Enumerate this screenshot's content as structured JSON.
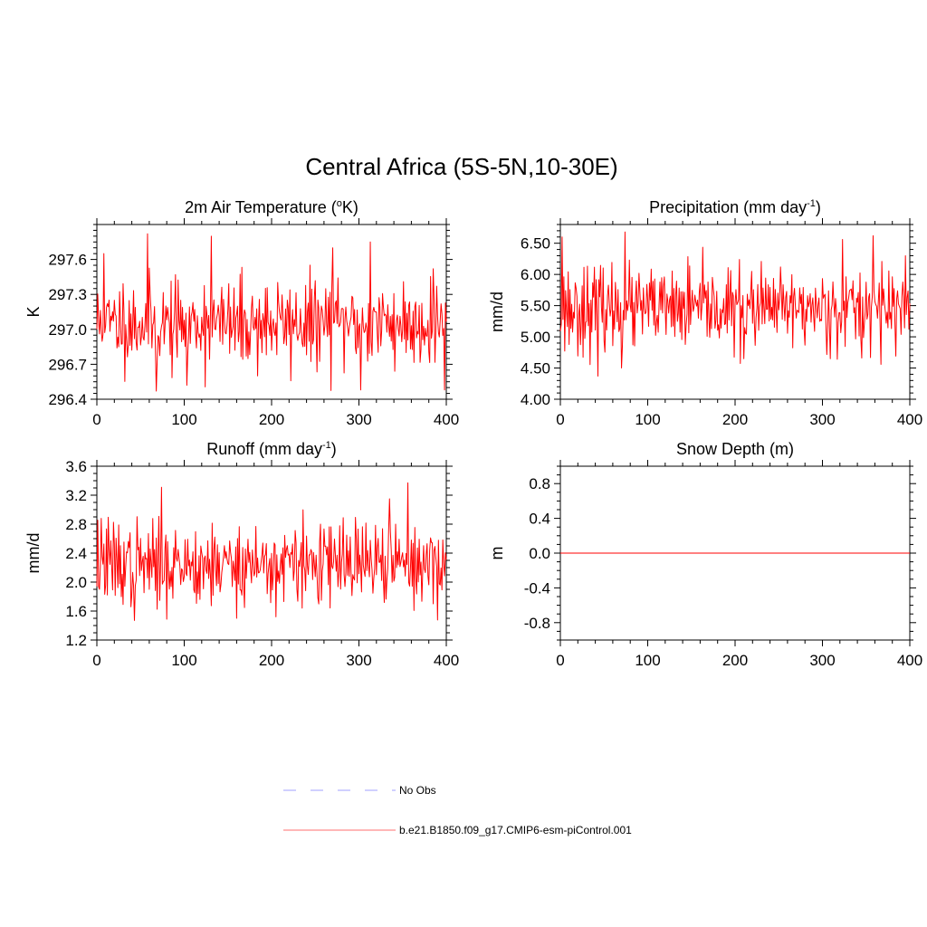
{
  "figure": {
    "title": "Central Africa (5S-5N,10-30E)"
  },
  "legend": {
    "items": [
      {
        "label": "No Obs",
        "color": "#b4b4ff",
        "style": "dashed"
      },
      {
        "label": "b.e21.B1850.f09_g17.CMIP6-esm-piControl.001",
        "color": "#ff8c8c",
        "style": "solid"
      }
    ]
  },
  "colors": {
    "series": "#ff0000",
    "axis": "#000000"
  },
  "chart_data": [
    {
      "type": "line",
      "title_main": "2m Air Temperature (",
      "title_sup": "o",
      "title_end": "K)",
      "ylabel": "K",
      "xlabel": "",
      "xlim": [
        0,
        400
      ],
      "ylim": [
        296.4,
        297.9
      ],
      "xticks": [
        0,
        100,
        200,
        300,
        400
      ],
      "xtick_labels": [
        "0",
        "100",
        "200",
        "300",
        "400"
      ],
      "yticks": [
        296.4,
        296.7,
        297.0,
        297.3,
        297.6
      ],
      "ytick_labels": [
        "296.4",
        "296.7",
        "297.0",
        "297.3",
        "297.6"
      ],
      "yminor_step": 0.05,
      "xminor_step": 20,
      "series": [
        {
          "gen": {
            "mean": 297.05,
            "sd": 0.22,
            "seed": 11,
            "min": 296.47,
            "max": 297.82,
            "n": 400,
            "spikes": [
              [
                8,
                297.65
              ],
              [
                58,
                297.82
              ],
              [
                131,
                297.8
              ],
              [
                68,
                296.47
              ],
              [
                103,
                296.52
              ],
              [
                302,
                296.48
              ],
              [
                398,
                296.48
              ],
              [
                313,
                297.75
              ],
              [
                270,
                297.7
              ],
              [
                385,
                297.52
              ]
            ]
          }
        }
      ]
    },
    {
      "type": "line",
      "title_main": "Precipitation (mm day",
      "title_sup": "-1",
      "title_end": ")",
      "ylabel": "mm/d",
      "xlabel": "",
      "xlim": [
        0,
        400
      ],
      "ylim": [
        4.0,
        6.8
      ],
      "xticks": [
        0,
        100,
        200,
        300,
        400
      ],
      "xtick_labels": [
        "0",
        "100",
        "200",
        "300",
        "400"
      ],
      "yticks": [
        4.0,
        4.5,
        5.0,
        5.5,
        6.0,
        6.5
      ],
      "ytick_labels": [
        "4.00",
        "4.50",
        "5.00",
        "5.50",
        "6.00",
        "6.50"
      ],
      "yminor_step": 0.1,
      "xminor_step": 20,
      "series": [
        {
          "gen": {
            "mean": 5.45,
            "sd": 0.38,
            "seed": 23,
            "min": 4.37,
            "max": 6.68,
            "n": 400,
            "spikes": [
              [
                2,
                6.6
              ],
              [
                43,
                4.37
              ],
              [
                74,
                6.68
              ],
              [
                70,
                4.5
              ],
              [
                358,
                6.62
              ],
              [
                323,
                6.56
              ],
              [
                210,
                4.65
              ],
              [
                345,
                4.66
              ],
              [
                395,
                6.3
              ]
            ]
          }
        }
      ]
    },
    {
      "type": "line",
      "title_main": "Runoff (mm day",
      "title_sup": "-1",
      "title_end": ")",
      "ylabel": "mm/d",
      "xlabel": "",
      "xlim": [
        0,
        400
      ],
      "ylim": [
        1.2,
        3.6
      ],
      "xticks": [
        0,
        100,
        200,
        300,
        400
      ],
      "xtick_labels": [
        "0",
        "100",
        "200",
        "300",
        "400"
      ],
      "yticks": [
        1.2,
        1.6,
        2.0,
        2.4,
        2.8,
        3.2,
        3.6
      ],
      "ytick_labels": [
        "1.2",
        "1.6",
        "2.0",
        "2.4",
        "2.8",
        "3.2",
        "3.6"
      ],
      "yminor_step": 0.1,
      "xminor_step": 20,
      "series": [
        {
          "gen": {
            "mean": 2.25,
            "sd": 0.33,
            "seed": 37,
            "min": 1.47,
            "max": 3.37,
            "n": 400,
            "spikes": [
              [
                74,
                3.31
              ],
              [
                356,
                3.37
              ],
              [
                43,
                1.47
              ],
              [
                160,
                1.5
              ],
              [
                205,
                1.52
              ],
              [
                335,
                3.15
              ],
              [
                5,
                2.88
              ],
              [
                385,
                1.7
              ]
            ]
          }
        }
      ]
    },
    {
      "type": "line",
      "title_main": "Snow Depth (m)",
      "title_sup": "",
      "title_end": "",
      "ylabel": "m",
      "xlabel": "",
      "xlim": [
        0,
        400
      ],
      "ylim": [
        -1.0,
        1.0
      ],
      "xticks": [
        0,
        100,
        200,
        300,
        400
      ],
      "xtick_labels": [
        "0",
        "100",
        "200",
        "300",
        "400"
      ],
      "yticks": [
        -0.8,
        -0.4,
        0.0,
        0.4,
        0.8
      ],
      "ytick_labels": [
        "-0.8",
        "-0.4",
        "0.0",
        "0.4",
        "0.8"
      ],
      "yminor_step": 0.1,
      "xminor_step": 20,
      "series": [
        {
          "constant": 0.0,
          "n": 400
        }
      ]
    }
  ]
}
